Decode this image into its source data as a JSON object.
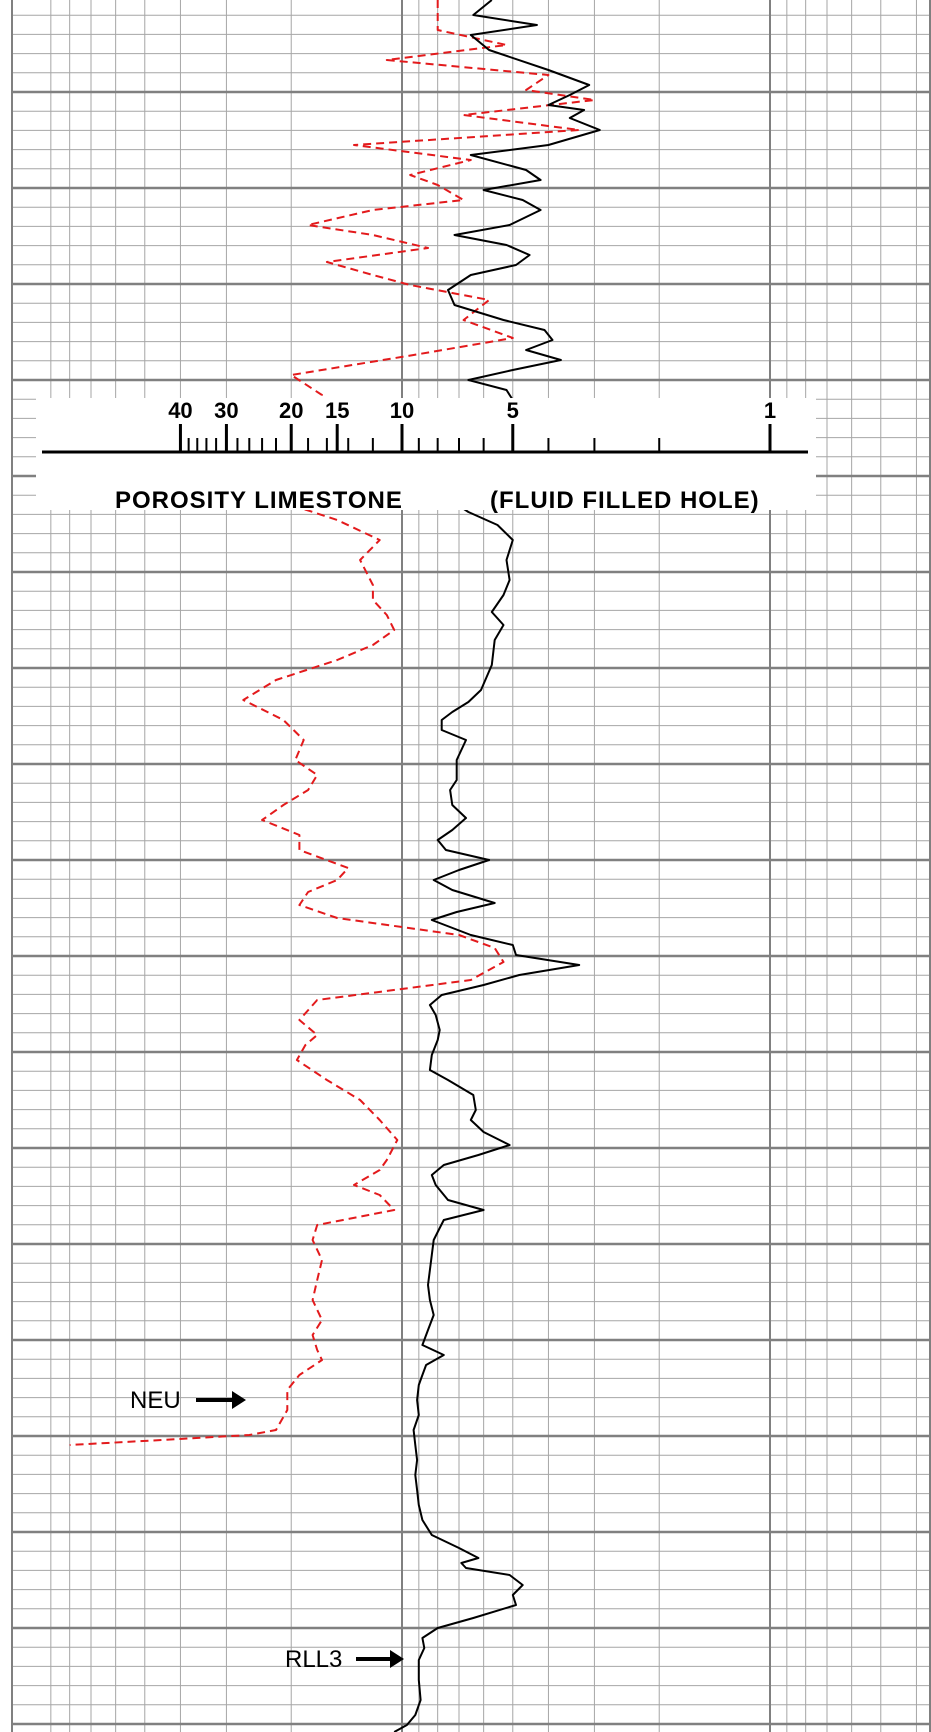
{
  "chart_data": {
    "type": "line",
    "x_scale": "log",
    "grid": true,
    "x_ticks": [
      {
        "label": "40",
        "value": 40
      },
      {
        "label": "30",
        "value": 30
      },
      {
        "label": "20",
        "value": 20
      },
      {
        "label": "15",
        "value": 15
      },
      {
        "label": "10",
        "value": 10
      },
      {
        "label": "5",
        "value": 5
      },
      {
        "label": "1",
        "value": 1
      }
    ],
    "scale_titles": {
      "left": "POROSITY LIMESTONE",
      "right": "(FLUID FILLED HOLE)"
    },
    "colors": {
      "NEU": "#e31a1c",
      "RLL3": "#000000",
      "grid_minor": "#a6a6a6",
      "grid_major": "#808080"
    },
    "series": [
      {
        "name": "NEU",
        "style": "dashed",
        "points": [
          [
            0,
            8
          ],
          [
            30,
            8
          ],
          [
            45,
            5.2
          ],
          [
            60,
            11
          ],
          [
            75,
            4.0
          ],
          [
            90,
            4.6
          ],
          [
            100,
            3.0
          ],
          [
            115,
            6.8
          ],
          [
            130,
            3.3
          ],
          [
            145,
            13.5
          ],
          [
            160,
            6.5
          ],
          [
            175,
            9.5
          ],
          [
            185,
            8.0
          ],
          [
            200,
            6.8
          ],
          [
            210,
            12
          ],
          [
            225,
            18
          ],
          [
            235,
            12
          ],
          [
            248,
            8.5
          ],
          [
            262,
            16
          ],
          [
            275,
            12
          ],
          [
            285,
            9.5
          ],
          [
            300,
            5.8
          ],
          [
            320,
            6.8
          ],
          [
            338,
            5.0
          ],
          [
            355,
            9.3
          ],
          [
            375,
            20
          ],
          [
            395,
            16.5
          ],
          [
            410,
            17
          ],
          [
            425,
            15.5
          ],
          [
            440,
            17
          ],
          [
            452,
            23
          ],
          [
            470,
            27
          ],
          [
            500,
            22
          ],
          [
            520,
            15
          ],
          [
            540,
            11.5
          ],
          [
            560,
            13
          ],
          [
            585,
            12
          ],
          [
            600,
            12
          ],
          [
            615,
            11
          ],
          [
            630,
            10.5
          ],
          [
            645,
            12
          ],
          [
            660,
            15
          ],
          [
            680,
            22
          ],
          [
            700,
            27
          ],
          [
            720,
            21
          ],
          [
            740,
            18.5
          ],
          [
            760,
            19.5
          ],
          [
            775,
            17
          ],
          [
            790,
            18
          ],
          [
            805,
            21
          ],
          [
            820,
            24
          ],
          [
            835,
            19
          ],
          [
            850,
            19
          ],
          [
            868,
            14
          ],
          [
            880,
            15
          ],
          [
            892,
            18
          ],
          [
            905,
            19
          ],
          [
            918,
            15
          ],
          [
            935,
            7
          ],
          [
            948,
            5.6
          ],
          [
            962,
            5.3
          ],
          [
            980,
            6.5
          ],
          [
            1000,
            17
          ],
          [
            1020,
            19
          ],
          [
            1035,
            17
          ],
          [
            1045,
            18.3
          ],
          [
            1060,
            19.3
          ],
          [
            1080,
            16
          ],
          [
            1100,
            13
          ],
          [
            1120,
            11.5
          ],
          [
            1140,
            10.3
          ],
          [
            1160,
            11
          ],
          [
            1170,
            11.5
          ],
          [
            1185,
            13.5
          ],
          [
            1195,
            11.5
          ],
          [
            1210,
            10.5
          ],
          [
            1225,
            17
          ],
          [
            1240,
            17.5
          ],
          [
            1260,
            16.5
          ],
          [
            1280,
            17
          ],
          [
            1300,
            17.5
          ],
          [
            1320,
            16.5
          ],
          [
            1335,
            17.5
          ],
          [
            1350,
            17
          ],
          [
            1360,
            16.5
          ],
          [
            1375,
            19
          ],
          [
            1390,
            20.5
          ],
          [
            1410,
            20.5
          ],
          [
            1430,
            22
          ],
          [
            1435,
            26
          ],
          [
            1440,
            45
          ],
          [
            1445,
            80
          ]
        ]
      },
      {
        "name": "RLL3",
        "style": "solid",
        "points": [
          [
            0,
            5.7
          ],
          [
            15,
            6.4
          ],
          [
            25,
            4.3
          ],
          [
            35,
            6.5
          ],
          [
            50,
            5.8
          ],
          [
            70,
            4.0
          ],
          [
            85,
            3.1
          ],
          [
            95,
            3.5
          ],
          [
            105,
            4.0
          ],
          [
            110,
            3.2
          ],
          [
            118,
            3.5
          ],
          [
            130,
            2.9
          ],
          [
            145,
            4.0
          ],
          [
            155,
            6.5
          ],
          [
            170,
            4.6
          ],
          [
            180,
            4.2
          ],
          [
            190,
            6.0
          ],
          [
            200,
            4.7
          ],
          [
            210,
            4.2
          ],
          [
            225,
            5.1
          ],
          [
            235,
            7.2
          ],
          [
            245,
            5.2
          ],
          [
            255,
            4.5
          ],
          [
            265,
            4.9
          ],
          [
            275,
            6.5
          ],
          [
            290,
            7.5
          ],
          [
            305,
            7.2
          ],
          [
            320,
            5.3
          ],
          [
            330,
            4.1
          ],
          [
            340,
            3.9
          ],
          [
            350,
            4.6
          ],
          [
            360,
            3.7
          ],
          [
            370,
            5.0
          ],
          [
            380,
            6.6
          ],
          [
            390,
            5.2
          ],
          [
            400,
            5.0
          ],
          [
            410,
            5.1
          ],
          [
            420,
            5.0
          ],
          [
            430,
            5.8
          ],
          [
            440,
            5.6
          ],
          [
            450,
            6.0
          ],
          [
            460,
            6.3
          ],
          [
            470,
            6.1
          ],
          [
            485,
            6.6
          ],
          [
            500,
            7.4
          ],
          [
            512,
            6.6
          ],
          [
            525,
            5.5
          ],
          [
            540,
            5.0
          ],
          [
            560,
            5.2
          ],
          [
            580,
            5.1
          ],
          [
            595,
            5.3
          ],
          [
            612,
            5.7
          ],
          [
            625,
            5.3
          ],
          [
            640,
            5.6
          ],
          [
            665,
            5.7
          ],
          [
            690,
            6.1
          ],
          [
            702,
            6.6
          ],
          [
            712,
            7.3
          ],
          [
            720,
            7.8
          ],
          [
            730,
            7.8
          ],
          [
            740,
            6.7
          ],
          [
            760,
            7.1
          ],
          [
            780,
            7.1
          ],
          [
            790,
            7.4
          ],
          [
            805,
            7.3
          ],
          [
            818,
            6.7
          ],
          [
            830,
            7.3
          ],
          [
            840,
            8.0
          ],
          [
            850,
            7.6
          ],
          [
            860,
            5.8
          ],
          [
            870,
            7.0
          ],
          [
            880,
            8.2
          ],
          [
            890,
            7.3
          ],
          [
            903,
            5.6
          ],
          [
            912,
            7.1
          ],
          [
            920,
            8.3
          ],
          [
            935,
            6.5
          ],
          [
            945,
            5.0
          ],
          [
            955,
            4.9
          ],
          [
            965,
            3.3
          ],
          [
            975,
            4.8
          ],
          [
            985,
            6.0
          ],
          [
            995,
            7.8
          ],
          [
            1005,
            8.4
          ],
          [
            1015,
            8.1
          ],
          [
            1030,
            7.9
          ],
          [
            1040,
            8.0
          ],
          [
            1055,
            8.3
          ],
          [
            1070,
            8.4
          ],
          [
            1080,
            7.5
          ],
          [
            1095,
            6.4
          ],
          [
            1110,
            6.3
          ],
          [
            1120,
            6.5
          ],
          [
            1132,
            6.0
          ],
          [
            1145,
            5.1
          ],
          [
            1155,
            6.2
          ],
          [
            1165,
            7.7
          ],
          [
            1175,
            8.3
          ],
          [
            1185,
            8.1
          ],
          [
            1200,
            7.5
          ],
          [
            1210,
            6.0
          ],
          [
            1220,
            7.7
          ],
          [
            1228,
            7.9
          ],
          [
            1240,
            8.2
          ],
          [
            1255,
            8.3
          ],
          [
            1270,
            8.4
          ],
          [
            1285,
            8.5
          ],
          [
            1300,
            8.4
          ],
          [
            1315,
            8.2
          ],
          [
            1330,
            8.5
          ],
          [
            1345,
            8.8
          ],
          [
            1355,
            7.7
          ],
          [
            1365,
            8.6
          ],
          [
            1375,
            8.8
          ],
          [
            1385,
            9.0
          ],
          [
            1400,
            9.1
          ],
          [
            1415,
            9.0
          ],
          [
            1430,
            9.3
          ],
          [
            1445,
            9.2
          ],
          [
            1460,
            9.1
          ],
          [
            1475,
            9.2
          ],
          [
            1490,
            9.1
          ],
          [
            1505,
            9.0
          ],
          [
            1520,
            8.8
          ],
          [
            1535,
            8.3
          ],
          [
            1548,
            7.0
          ],
          [
            1558,
            6.2
          ],
          [
            1563,
            6.9
          ],
          [
            1568,
            6.7
          ],
          [
            1575,
            5.1
          ],
          [
            1585,
            4.7
          ],
          [
            1595,
            5.0
          ],
          [
            1605,
            4.9
          ],
          [
            1618,
            6.4
          ],
          [
            1628,
            8.0
          ],
          [
            1638,
            8.8
          ],
          [
            1648,
            8.7
          ],
          [
            1660,
            9.0
          ],
          [
            1680,
            9.0
          ],
          [
            1700,
            8.9
          ],
          [
            1715,
            9.2
          ],
          [
            1725,
            9.7
          ],
          [
            1732,
            10.5
          ]
        ]
      }
    ],
    "annotations": [
      {
        "text": "NEU",
        "series": "NEU"
      },
      {
        "text": "RLL3",
        "series": "RLL3"
      }
    ]
  }
}
